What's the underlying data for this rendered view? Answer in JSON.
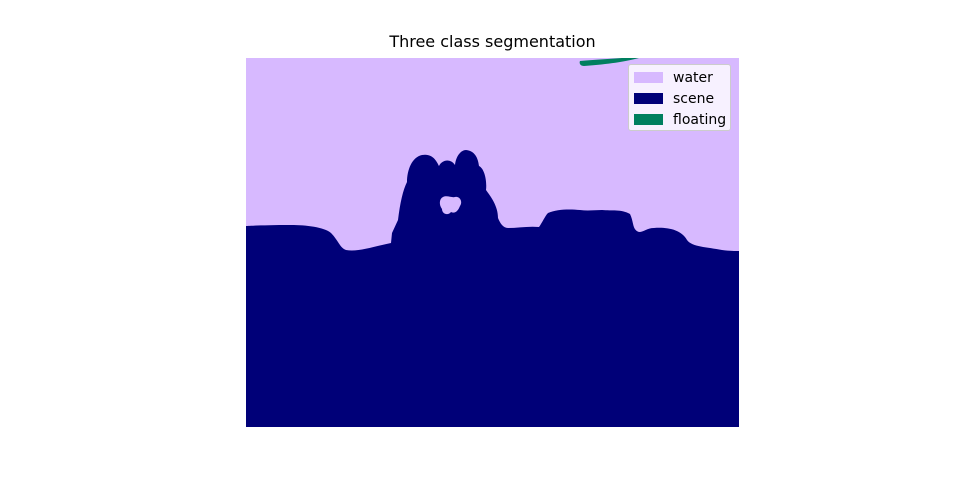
{
  "figure": {
    "title": "Three class segmentation"
  },
  "legend": {
    "position": "top-right",
    "items": [
      {
        "label": "water",
        "color": "#d7b9ff"
      },
      {
        "label": "scene",
        "color": "#000078"
      },
      {
        "label": "floating",
        "color": "#007f5f"
      }
    ]
  }
}
